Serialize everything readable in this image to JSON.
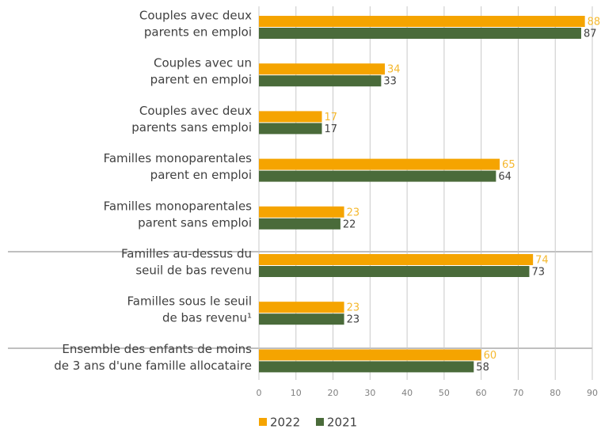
{
  "chart_data": {
    "type": "hbar",
    "categories": [
      [
        "Couples avec deux",
        "parents en emploi"
      ],
      [
        "Couples avec un",
        "parent en emploi"
      ],
      [
        "Couples avec deux",
        "parents sans emploi"
      ],
      [
        "Familles monoparentales",
        "parent en emploi"
      ],
      [
        "Familles monoparentales",
        "parent sans emploi"
      ],
      [
        "Familles au-dessus du",
        "seuil de bas revenu"
      ],
      [
        "Familles sous le seuil",
        "de bas revenu¹"
      ],
      [
        "Ensemble des enfants de moins",
        "de 3 ans d'une famille allocataire"
      ]
    ],
    "series": [
      {
        "name": "2022",
        "color": "#f5a400",
        "label_color": "#f5b82e",
        "values": [
          88,
          34,
          17,
          65,
          23,
          74,
          23,
          60
        ]
      },
      {
        "name": "2021",
        "color": "#4a6b3a",
        "label_color": "#404040",
        "values": [
          87,
          33,
          17,
          64,
          22,
          73,
          23,
          58
        ]
      }
    ],
    "xlim": [
      0,
      90
    ],
    "xticks": [
      0,
      10,
      20,
      30,
      40,
      50,
      60,
      70,
      80,
      90
    ],
    "grid": true
  }
}
